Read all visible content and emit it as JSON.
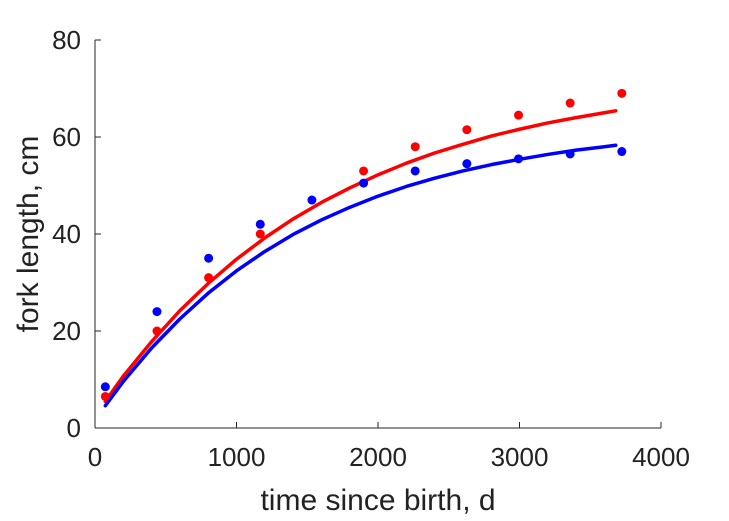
{
  "chart_data": {
    "type": "scatter",
    "title": "",
    "xlabel": "time since birth, d",
    "ylabel": "fork length, cm",
    "xlim": [
      0,
      4000
    ],
    "ylim": [
      0,
      80
    ],
    "xticks": [
      0,
      1000,
      2000,
      3000,
      4000
    ],
    "yticks": [
      0,
      20,
      40,
      60,
      80
    ],
    "xtick_labels": [
      "0",
      "1000",
      "2000",
      "3000",
      "4000"
    ],
    "ytick_labels": [
      "0",
      "20",
      "40",
      "60",
      "80"
    ],
    "grid": false,
    "legend": false,
    "series": [
      {
        "kind": "points",
        "color": "#ff0000",
        "points": [
          [
            73,
            6.5
          ],
          [
            438,
            20
          ],
          [
            803,
            31
          ],
          [
            1168,
            40
          ],
          [
            1898,
            53
          ],
          [
            2263,
            58
          ],
          [
            2628,
            61.5
          ],
          [
            2993,
            64.5
          ],
          [
            3358,
            67
          ],
          [
            3723,
            69
          ]
        ]
      },
      {
        "kind": "points",
        "color": "#0000ff",
        "points": [
          [
            73,
            8.5
          ],
          [
            438,
            24
          ],
          [
            803,
            35
          ],
          [
            1168,
            42
          ],
          [
            1533,
            47
          ],
          [
            1898,
            50.5
          ],
          [
            2263,
            53
          ],
          [
            2628,
            54.5
          ],
          [
            2993,
            55.5
          ],
          [
            3358,
            56.5
          ],
          [
            3723,
            57
          ]
        ]
      },
      {
        "kind": "line",
        "color": "#ff0000",
        "points": [
          [
            73,
            5.5
          ],
          [
            200,
            10.7
          ],
          [
            400,
            17.8
          ],
          [
            600,
            24.2
          ],
          [
            800,
            29.8
          ],
          [
            1000,
            34.8
          ],
          [
            1200,
            39.2
          ],
          [
            1400,
            43.1
          ],
          [
            1600,
            46.5
          ],
          [
            1800,
            49.5
          ],
          [
            2000,
            52.2
          ],
          [
            2200,
            54.6
          ],
          [
            2400,
            56.7
          ],
          [
            2600,
            58.5
          ],
          [
            2800,
            60.2
          ],
          [
            3000,
            61.6
          ],
          [
            3200,
            62.9
          ],
          [
            3400,
            64.0
          ],
          [
            3600,
            65.0
          ],
          [
            3680,
            65.4
          ]
        ]
      },
      {
        "kind": "line",
        "color": "#0000ff",
        "points": [
          [
            73,
            4.6
          ],
          [
            200,
            9.6
          ],
          [
            400,
            16.5
          ],
          [
            600,
            22.5
          ],
          [
            800,
            27.8
          ],
          [
            1000,
            32.4
          ],
          [
            1200,
            36.4
          ],
          [
            1400,
            39.9
          ],
          [
            1600,
            42.9
          ],
          [
            1800,
            45.5
          ],
          [
            2000,
            47.8
          ],
          [
            2200,
            49.8
          ],
          [
            2400,
            51.5
          ],
          [
            2600,
            53.0
          ],
          [
            2800,
            54.3
          ],
          [
            3000,
            55.4
          ],
          [
            3200,
            56.4
          ],
          [
            3400,
            57.3
          ],
          [
            3600,
            58.0
          ],
          [
            3680,
            58.3
          ]
        ]
      }
    ]
  }
}
